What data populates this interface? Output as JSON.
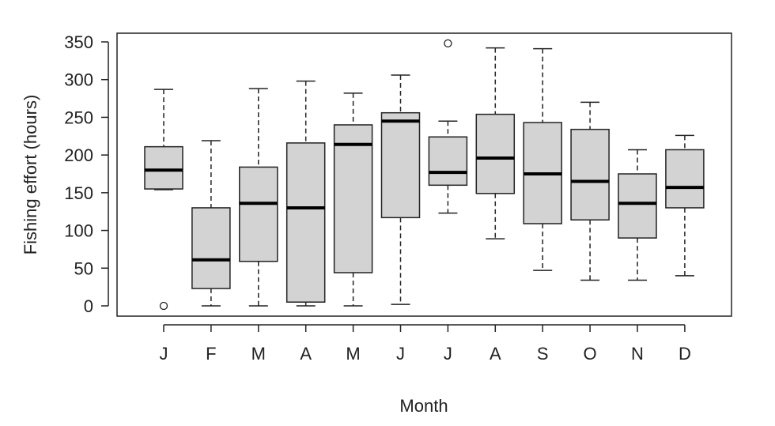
{
  "chart_data": {
    "type": "boxplot",
    "title": "",
    "xlabel": "Month",
    "ylabel": "Fishing effort (hours)",
    "ylim": [
      -14,
      362
    ],
    "yticks": [
      0,
      50,
      100,
      150,
      200,
      250,
      300,
      350
    ],
    "grid": false,
    "box_fill": "#d3d3d3",
    "categories": [
      "J",
      "F",
      "M",
      "A",
      "M",
      "J",
      "J",
      "A",
      "S",
      "O",
      "N",
      "D"
    ],
    "boxes": [
      {
        "low": 154,
        "q1": 155,
        "median": 180,
        "q3": 211,
        "high": 287,
        "outliers": [
          0
        ]
      },
      {
        "low": 0,
        "q1": 23,
        "median": 61,
        "q3": 130,
        "high": 219,
        "outliers": []
      },
      {
        "low": 0,
        "q1": 59,
        "median": 136,
        "q3": 184,
        "high": 288,
        "outliers": []
      },
      {
        "low": 0,
        "q1": 5,
        "median": 130,
        "q3": 216,
        "high": 298,
        "outliers": []
      },
      {
        "low": 0,
        "q1": 44,
        "median": 214,
        "q3": 240,
        "high": 282,
        "outliers": []
      },
      {
        "low": 2,
        "q1": 117,
        "median": 245,
        "q3": 256,
        "high": 306,
        "outliers": []
      },
      {
        "low": 123,
        "q1": 160,
        "median": 177,
        "q3": 224,
        "high": 245,
        "outliers": [
          348
        ]
      },
      {
        "low": 89,
        "q1": 149,
        "median": 196,
        "q3": 254,
        "high": 342,
        "outliers": []
      },
      {
        "low": 47,
        "q1": 109,
        "median": 175,
        "q3": 243,
        "high": 341,
        "outliers": []
      },
      {
        "low": 34,
        "q1": 114,
        "median": 165,
        "q3": 234,
        "high": 270,
        "outliers": []
      },
      {
        "low": 34,
        "q1": 90,
        "median": 136,
        "q3": 175,
        "high": 207,
        "outliers": []
      },
      {
        "low": 40,
        "q1": 130,
        "median": 157,
        "q3": 207,
        "high": 226,
        "outliers": []
      }
    ]
  }
}
